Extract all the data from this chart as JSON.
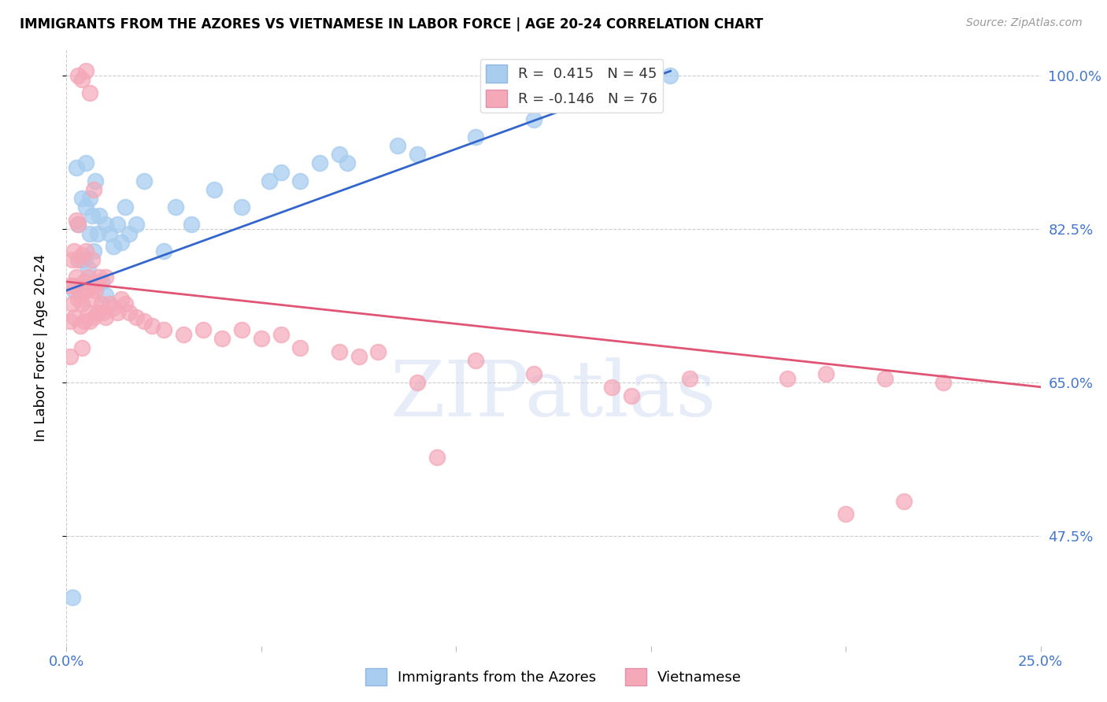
{
  "title": "IMMIGRANTS FROM THE AZORES VS VIETNAMESE IN LABOR FORCE | AGE 20-24 CORRELATION CHART",
  "source": "Source: ZipAtlas.com",
  "ylabel": "In Labor Force | Age 20-24",
  "yticks": [
    47.5,
    65.0,
    82.5,
    100.0
  ],
  "ytick_labels": [
    "47.5%",
    "65.0%",
    "82.5%",
    "100.0%"
  ],
  "xmin": 0.0,
  "xmax": 25.0,
  "ymin": 35.0,
  "ymax": 103.0,
  "R_azores": 0.415,
  "N_azores": 45,
  "R_vietnamese": -0.146,
  "N_vietnamese": 76,
  "color_azores": "#A8CDEF",
  "color_vietnamese": "#F4A8B8",
  "trend_color_azores": "#3366CC",
  "trend_color_vietnamese": "#E05575",
  "watermark_color": "#C8D8F0",
  "azores_x": [
    0.15,
    0.2,
    0.25,
    0.3,
    0.35,
    0.4,
    0.45,
    0.5,
    0.5,
    0.55,
    0.6,
    0.6,
    0.65,
    0.7,
    0.75,
    0.8,
    0.85,
    0.9,
    1.0,
    1.0,
    1.1,
    1.2,
    1.3,
    1.4,
    1.5,
    1.6,
    1.8,
    2.0,
    2.5,
    2.8,
    3.2,
    3.8,
    4.5,
    5.2,
    6.0,
    6.5,
    7.2,
    8.5,
    9.0,
    10.5,
    12.0,
    14.0,
    15.5,
    5.5,
    7.0
  ],
  "azores_y": [
    40.5,
    75.5,
    89.5,
    83.0,
    79.0,
    86.0,
    79.0,
    85.0,
    90.0,
    78.0,
    82.0,
    86.0,
    84.0,
    80.0,
    88.0,
    82.0,
    84.0,
    76.5,
    75.0,
    83.0,
    82.0,
    80.5,
    83.0,
    81.0,
    85.0,
    82.0,
    83.0,
    88.0,
    80.0,
    85.0,
    83.0,
    87.0,
    85.0,
    88.0,
    88.0,
    90.0,
    90.0,
    92.0,
    91.0,
    93.0,
    95.0,
    98.0,
    100.0,
    89.0,
    91.0
  ],
  "vietnamese_x": [
    0.1,
    0.1,
    0.1,
    0.15,
    0.15,
    0.2,
    0.2,
    0.2,
    0.25,
    0.25,
    0.3,
    0.3,
    0.3,
    0.35,
    0.35,
    0.4,
    0.4,
    0.4,
    0.45,
    0.45,
    0.5,
    0.5,
    0.55,
    0.55,
    0.6,
    0.6,
    0.65,
    0.65,
    0.7,
    0.7,
    0.75,
    0.8,
    0.8,
    0.85,
    0.9,
    0.95,
    1.0,
    1.0,
    1.1,
    1.2,
    1.3,
    1.4,
    1.5,
    1.6,
    1.8,
    2.0,
    2.2,
    2.5,
    3.0,
    3.5,
    4.0,
    4.5,
    5.0,
    5.5,
    6.0,
    7.0,
    7.5,
    8.0,
    9.0,
    10.5,
    12.0,
    14.0,
    16.0,
    18.5,
    19.5,
    21.0,
    22.5,
    14.5,
    20.0,
    21.5,
    9.5,
    0.3,
    0.4,
    0.5,
    0.6,
    0.7
  ],
  "vietnamese_y": [
    76.0,
    72.0,
    68.0,
    79.0,
    74.0,
    80.0,
    72.5,
    76.0,
    83.5,
    77.0,
    79.0,
    74.5,
    83.0,
    75.0,
    71.5,
    79.5,
    74.0,
    69.0,
    76.5,
    72.0,
    80.0,
    75.5,
    77.0,
    73.0,
    76.0,
    72.0,
    79.0,
    74.5,
    76.0,
    72.5,
    75.5,
    76.5,
    73.0,
    77.0,
    74.0,
    73.0,
    77.0,
    72.5,
    74.0,
    73.5,
    73.0,
    74.5,
    74.0,
    73.0,
    72.5,
    72.0,
    71.5,
    71.0,
    70.5,
    71.0,
    70.0,
    71.0,
    70.0,
    70.5,
    69.0,
    68.5,
    68.0,
    68.5,
    65.0,
    67.5,
    66.0,
    64.5,
    65.5,
    65.5,
    66.0,
    65.5,
    65.0,
    63.5,
    50.0,
    51.5,
    56.5,
    100.0,
    99.5,
    100.5,
    98.0,
    87.0
  ],
  "trend_azores_x0": 0.0,
  "trend_azores_y0": 75.5,
  "trend_azores_x1": 15.5,
  "trend_azores_y1": 100.5,
  "trend_viet_x0": 0.0,
  "trend_viet_y0": 76.5,
  "trend_viet_x1": 25.0,
  "trend_viet_y1": 64.5
}
